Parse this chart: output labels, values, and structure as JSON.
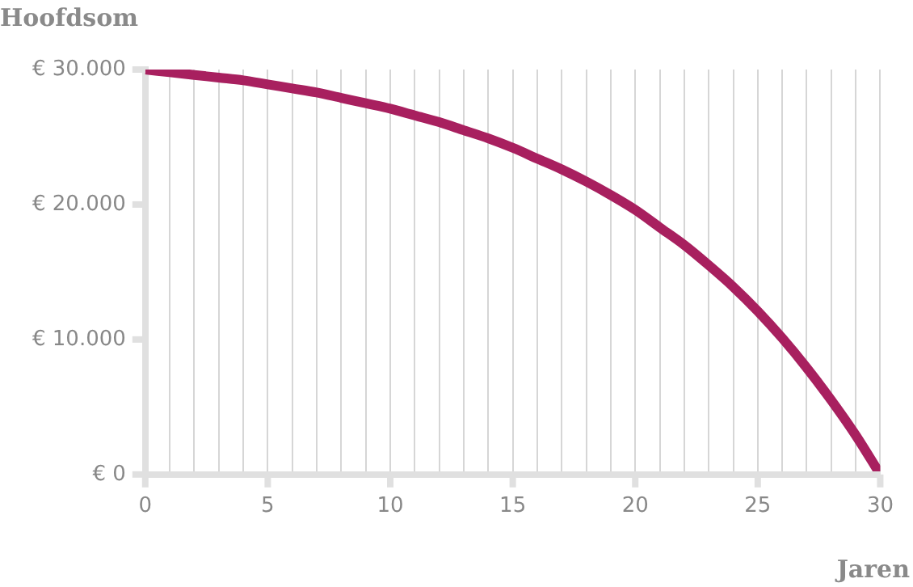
{
  "chart_data": {
    "type": "line",
    "xlabel": "Jaren",
    "ylabel": "Hoofdsom",
    "x": [
      0,
      1,
      2,
      3,
      4,
      5,
      6,
      7,
      8,
      9,
      10,
      11,
      12,
      13,
      14,
      15,
      16,
      17,
      18,
      19,
      20,
      21,
      22,
      23,
      24,
      25,
      26,
      27,
      28,
      29,
      30
    ],
    "series": [
      {
        "color": "#a8205f",
        "values": [
          30000,
          29800,
          29600,
          29400,
          29200,
          28900,
          28600,
          28300,
          27900,
          27500,
          27100,
          26600,
          26100,
          25500,
          24900,
          24200,
          23400,
          22600,
          21700,
          20700,
          19600,
          18300,
          17000,
          15500,
          13900,
          12100,
          10100,
          7900,
          5500,
          2900,
          0
        ]
      }
    ],
    "xlim": [
      0,
      30
    ],
    "xticks": [
      0,
      {
        "value": 1,
        "label": null
      },
      {
        "value": 2,
        "label": null
      },
      {
        "value": 3,
        "label": null
      },
      {
        "value": 4,
        "label": null
      },
      5,
      {
        "value": 6,
        "label": null
      },
      {
        "value": 7,
        "label": null
      },
      {
        "value": 8,
        "label": null
      },
      {
        "value": 9,
        "label": null
      },
      10,
      {
        "value": 11,
        "label": null
      },
      {
        "value": 12,
        "label": null
      },
      {
        "value": 13,
        "label": null
      },
      {
        "value": 14,
        "label": null
      },
      15,
      {
        "value": 16,
        "label": null
      },
      {
        "value": 17,
        "label": null
      },
      {
        "value": 18,
        "label": null
      },
      {
        "value": 19,
        "label": null
      },
      20,
      {
        "value": 21,
        "label": null
      },
      {
        "value": 22,
        "label": null
      },
      {
        "value": 23,
        "label": null
      },
      {
        "value": 24,
        "label": null
      },
      25,
      {
        "value": 26,
        "label": null
      },
      {
        "value": 27,
        "label": null
      },
      {
        "value": 28,
        "label": null
      },
      {
        "value": 29,
        "label": null
      },
      30
    ],
    "ylim": [
      0,
      30000
    ],
    "yticks": [
      {
        "value": 0,
        "label": "€ 0"
      },
      {
        "value": 10000,
        "label": "€ 10.000"
      },
      {
        "value": 20000,
        "label": "€ 20.000"
      },
      {
        "value": 30000,
        "label": "€ 30.000"
      }
    ],
    "grid": "x",
    "legend": false,
    "marker": "none",
    "line_style": "solid"
  }
}
